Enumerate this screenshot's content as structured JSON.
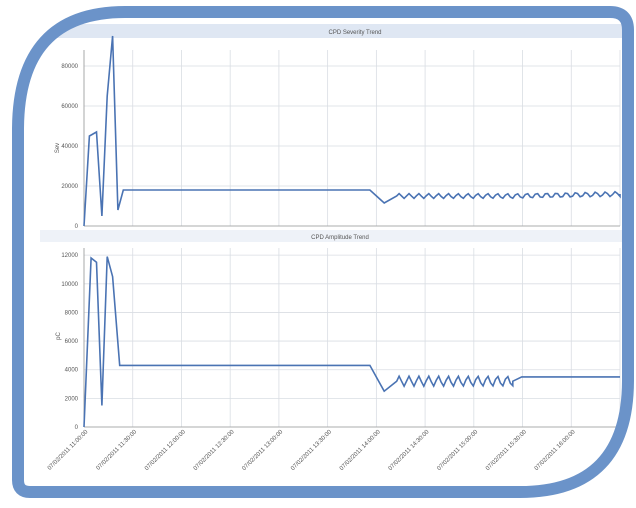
{
  "colors": {
    "frame": "#6b93c9",
    "line": "#4a73b3",
    "grid": "#d9dde3",
    "title_bar": "#dfe7f3",
    "axis_text": "#555555"
  },
  "chart_data": [
    {
      "type": "line",
      "title": "CPD Severity Trend",
      "ylabel": "Sev",
      "yticks": [
        "0",
        "20000",
        "40000",
        "60000",
        "80000"
      ],
      "ylim": [
        0,
        88000
      ],
      "grid": true,
      "series": [
        {
          "points": [
            [
              0,
              0
            ],
            [
              0.3,
              45000
            ],
            [
              0.7,
              47000
            ],
            [
              1.0,
              5000
            ],
            [
              1.3,
              65000
            ],
            [
              1.6,
              95000
            ],
            [
              1.9,
              8000
            ],
            [
              2.2,
              18000
            ],
            [
              16.0,
              18000
            ],
            [
              16.8,
              11500
            ],
            [
              17.5,
              15000
            ],
            [
              24.0,
              15000
            ],
            [
              30.0,
              16000
            ]
          ],
          "oscillation_start": 17.5,
          "oscillation_amplitude": 1200,
          "oscillation_period": 0.55
        }
      ]
    },
    {
      "type": "line",
      "title": "CPD Amplitude Trend",
      "ylabel": "pC",
      "yticks": [
        "0",
        "2000",
        "4000",
        "6000",
        "8000",
        "10000",
        "12000"
      ],
      "ylim": [
        0,
        12500
      ],
      "grid": true,
      "x_tick_labels": [
        "07/02/2011 11:00:00",
        "07/02/2011 11:30:00",
        "07/02/2011 12:00:00",
        "07/02/2011 12:30:00",
        "07/02/2011 13:00:00",
        "07/02/2011 13:30:00",
        "07/02/2011 14:00:00",
        "07/02/2011 14:30:00",
        "07/02/2011 15:00:00",
        "07/02/2011 15:30:00",
        "07/02/2011 16:00:00"
      ],
      "series": [
        {
          "points": [
            [
              0,
              0
            ],
            [
              0.4,
              11800
            ],
            [
              0.7,
              11500
            ],
            [
              1.0,
              1500
            ],
            [
              1.3,
              11900
            ],
            [
              1.6,
              10500
            ],
            [
              2.0,
              4300
            ],
            [
              16.0,
              4300
            ],
            [
              16.8,
              2500
            ],
            [
              17.5,
              3200
            ],
            [
              24.0,
              3200
            ],
            [
              24.5,
              3500
            ],
            [
              30.0,
              3500
            ]
          ],
          "oscillation_start": 17.5,
          "oscillation_end": 24.0,
          "oscillation_amplitude": 350,
          "oscillation_period": 0.55
        }
      ]
    }
  ]
}
